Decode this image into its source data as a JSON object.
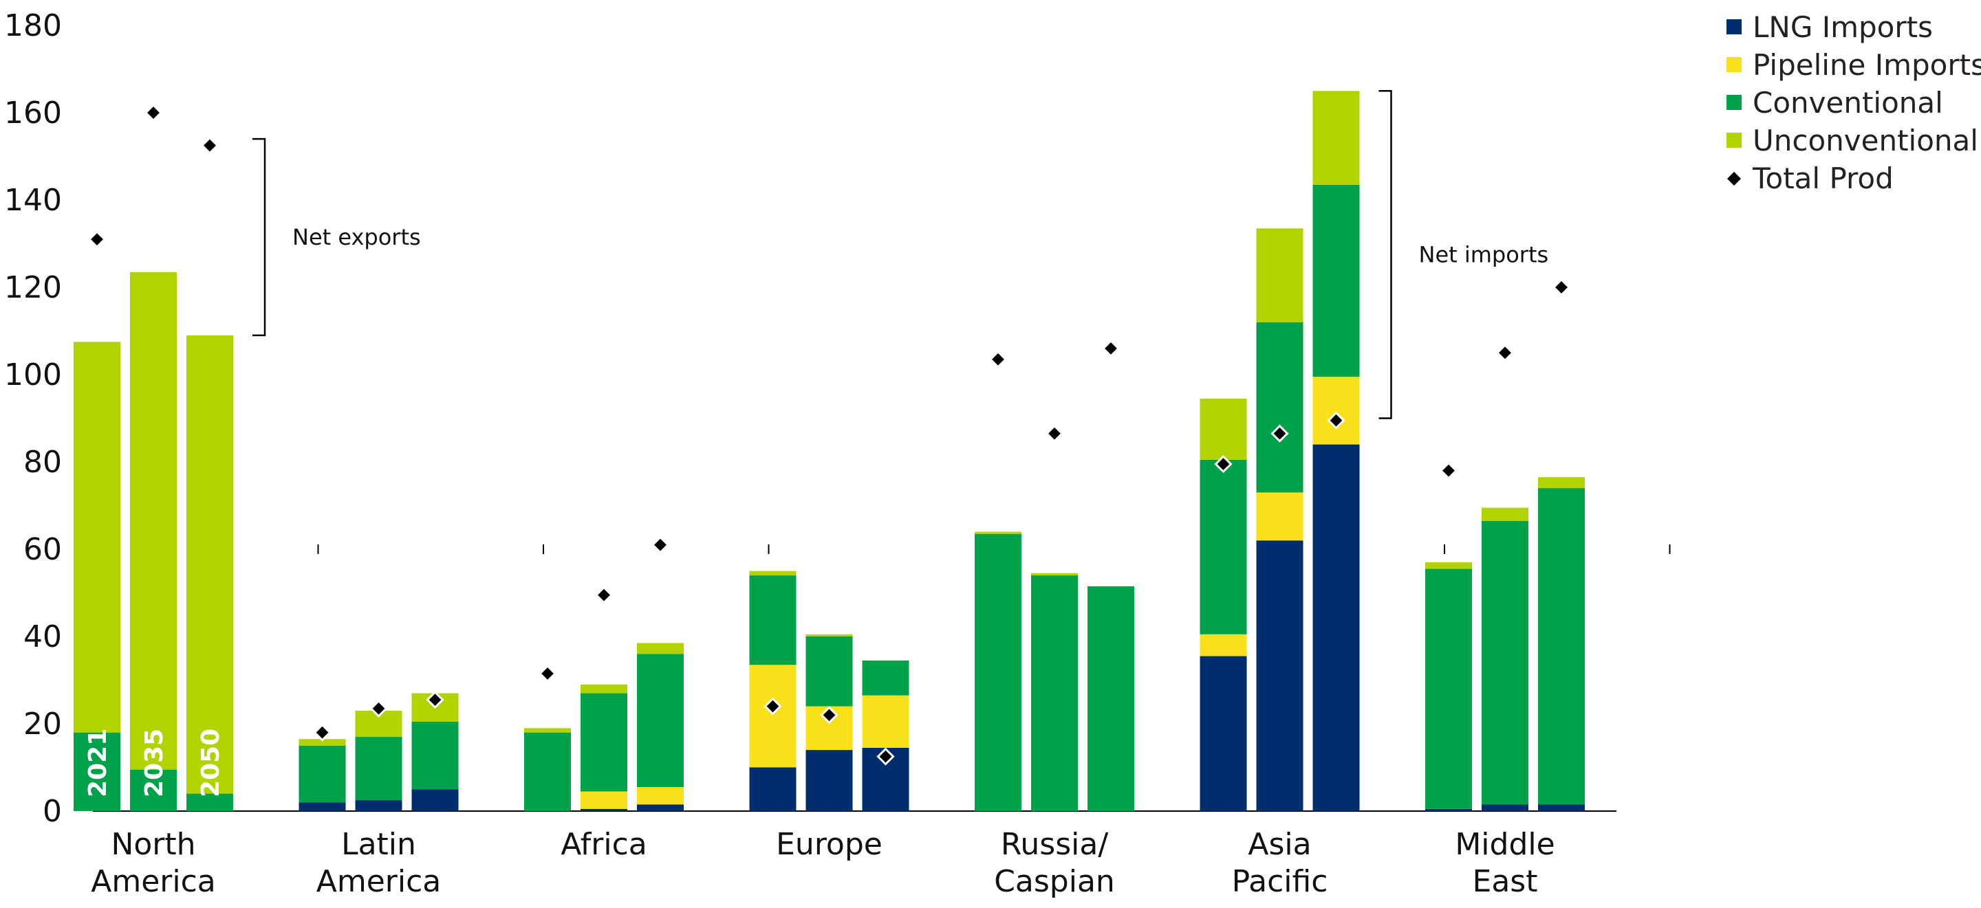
{
  "chart_data": {
    "type": "bar",
    "stacked": true,
    "title": "",
    "xlabel": "",
    "ylabel": "",
    "ylim": [
      0,
      180
    ],
    "yticks": [
      0,
      20,
      40,
      60,
      80,
      100,
      120,
      140,
      160,
      180
    ],
    "grid": false,
    "legend_position": "top-right",
    "categories": [
      {
        "label": [
          "North",
          "America"
        ],
        "years": [
          "2021",
          "2035",
          "2050"
        ]
      },
      {
        "label": [
          "Latin",
          "America"
        ],
        "years": [
          "2021",
          "2035",
          "2050"
        ]
      },
      {
        "label": [
          "Africa"
        ],
        "years": [
          "2021",
          "2035",
          "2050"
        ]
      },
      {
        "label": [
          "Europe"
        ],
        "years": [
          "2021",
          "2035",
          "2050"
        ]
      },
      {
        "label": [
          "Russia/",
          "Caspian"
        ],
        "years": [
          "2021",
          "2035",
          "2050"
        ]
      },
      {
        "label": [
          "Asia",
          "Pacific"
        ],
        "years": [
          "2021",
          "2035",
          "2050"
        ]
      },
      {
        "label": [
          "Middle",
          "East"
        ],
        "years": [
          "2021",
          "2035",
          "2050"
        ]
      }
    ],
    "year_labels_shown_in": "North America",
    "series": [
      {
        "name": "LNG Imports",
        "color": "#002d6b",
        "values": [
          [
            0,
            0,
            0
          ],
          [
            2,
            2.5,
            5
          ],
          [
            0,
            0.5,
            1.5
          ],
          [
            10,
            14,
            14.5
          ],
          [
            0,
            0,
            0
          ],
          [
            35.5,
            62,
            84
          ],
          [
            0.5,
            1.5,
            1.5
          ]
        ]
      },
      {
        "name": "Pipeline Imports",
        "color": "#f8e01b",
        "values": [
          [
            0,
            0,
            0
          ],
          [
            0,
            0,
            0
          ],
          [
            0,
            4,
            4
          ],
          [
            23.5,
            10,
            12
          ],
          [
            0,
            0,
            0
          ],
          [
            5,
            11,
            15.5
          ],
          [
            0,
            0,
            0
          ]
        ]
      },
      {
        "name": "Conventional",
        "color": "#00a14b",
        "values": [
          [
            18,
            9.5,
            4
          ],
          [
            13,
            14.5,
            15.5
          ],
          [
            18,
            22.5,
            30.5
          ],
          [
            20.5,
            16,
            8
          ],
          [
            63.5,
            54,
            51.5
          ],
          [
            40,
            39,
            44
          ],
          [
            55,
            65,
            72.5
          ]
        ]
      },
      {
        "name": "Unconventional",
        "color": "#b2d300",
        "values": [
          [
            89.5,
            114,
            105
          ],
          [
            1.5,
            6,
            6.5
          ],
          [
            1,
            2,
            2.5
          ],
          [
            1,
            0.5,
            0
          ],
          [
            0.5,
            0.5,
            0
          ],
          [
            14,
            21.5,
            21.5
          ],
          [
            1.5,
            3,
            2.5
          ]
        ]
      }
    ],
    "markers": {
      "name": "Total Prod",
      "color": "#000000",
      "values": [
        [
          131,
          160,
          152.5
        ],
        [
          18,
          23.5,
          25.5
        ],
        [
          31.5,
          49.5,
          61
        ],
        [
          24,
          22,
          12.5
        ],
        [
          103.5,
          86.5,
          106
        ],
        [
          79.5,
          86.5,
          89.5
        ],
        [
          78,
          105,
          120
        ]
      ]
    },
    "annotations": [
      {
        "text": "Net exports",
        "group": 0,
        "from": 109,
        "to": 154
      },
      {
        "text": "Net imports",
        "group": 5,
        "from": 90,
        "to": 165
      }
    ]
  }
}
